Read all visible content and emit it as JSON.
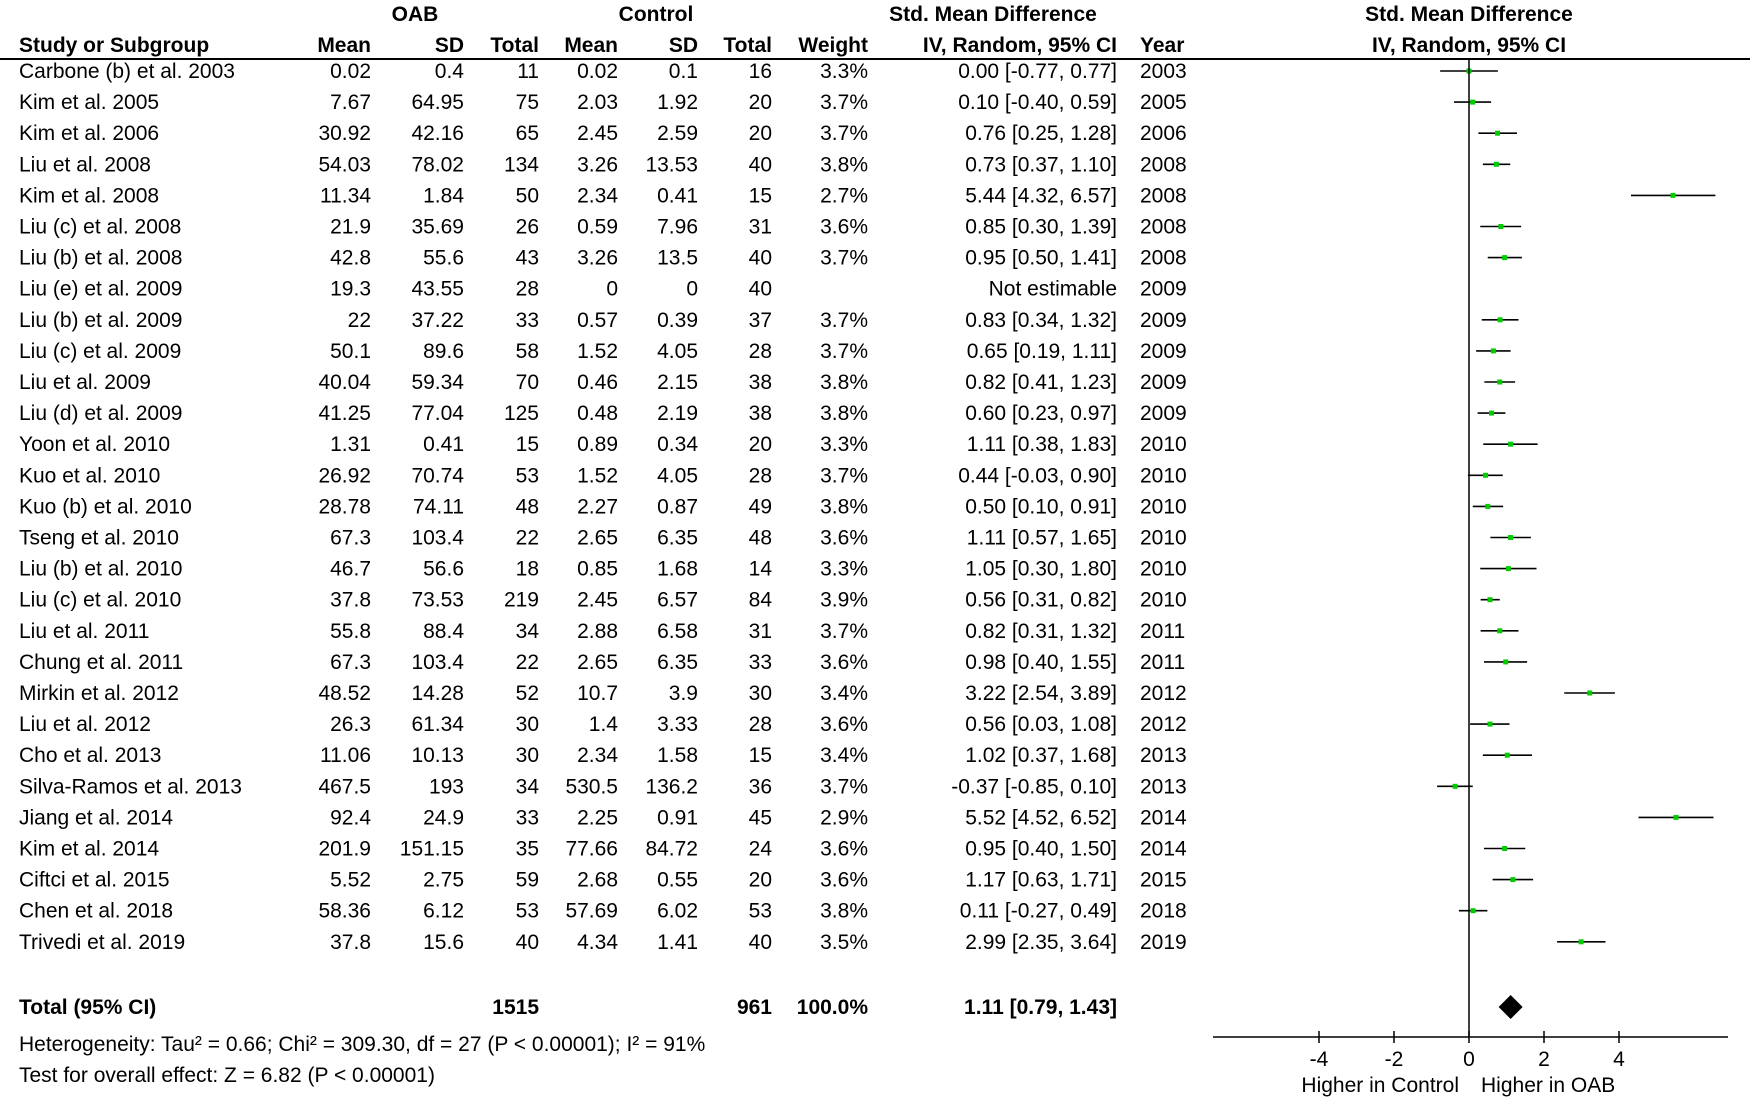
{
  "headers": {
    "oab_group": "OAB",
    "control_group": "Control",
    "smd_group": "Std. Mean Difference",
    "smd_method": "IV, Random, 95% CI",
    "plot_title": "Std. Mean Difference",
    "plot_method": "IV, Random, 95% CI",
    "columns": [
      "Study or Subgroup",
      "Mean",
      "SD",
      "Total",
      "Mean",
      "SD",
      "Total",
      "Weight",
      "IV, Random, 95% CI",
      "Year"
    ]
  },
  "studies": [
    {
      "study": "Carbone (b) et al. 2003",
      "oab_mean": "0.02",
      "oab_sd": "0.4",
      "oab_total": "11",
      "ctrl_mean": "0.02",
      "ctrl_sd": "0.1",
      "ctrl_total": "16",
      "weight": "3.3%",
      "ci_text": "0.00 [-0.77, 0.77]",
      "year": "2003",
      "smd": 0.0,
      "lo": -0.77,
      "hi": 0.77
    },
    {
      "study": "Kim et al. 2005",
      "oab_mean": "7.67",
      "oab_sd": "64.95",
      "oab_total": "75",
      "ctrl_mean": "2.03",
      "ctrl_sd": "1.92",
      "ctrl_total": "20",
      "weight": "3.7%",
      "ci_text": "0.10 [-0.40, 0.59]",
      "year": "2005",
      "smd": 0.1,
      "lo": -0.4,
      "hi": 0.59
    },
    {
      "study": "Kim et al. 2006",
      "oab_mean": "30.92",
      "oab_sd": "42.16",
      "oab_total": "65",
      "ctrl_mean": "2.45",
      "ctrl_sd": "2.59",
      "ctrl_total": "20",
      "weight": "3.7%",
      "ci_text": "0.76 [0.25, 1.28]",
      "year": "2006",
      "smd": 0.76,
      "lo": 0.25,
      "hi": 1.28
    },
    {
      "study": "Liu et al. 2008",
      "oab_mean": "54.03",
      "oab_sd": "78.02",
      "oab_total": "134",
      "ctrl_mean": "3.26",
      "ctrl_sd": "13.53",
      "ctrl_total": "40",
      "weight": "3.8%",
      "ci_text": "0.73 [0.37, 1.10]",
      "year": "2008",
      "smd": 0.73,
      "lo": 0.37,
      "hi": 1.1
    },
    {
      "study": "Kim et al. 2008",
      "oab_mean": "11.34",
      "oab_sd": "1.84",
      "oab_total": "50",
      "ctrl_mean": "2.34",
      "ctrl_sd": "0.41",
      "ctrl_total": "15",
      "weight": "2.7%",
      "ci_text": "5.44 [4.32, 6.57]",
      "year": "2008",
      "smd": 5.44,
      "lo": 4.32,
      "hi": 6.57
    },
    {
      "study": "Liu (c) et al. 2008",
      "oab_mean": "21.9",
      "oab_sd": "35.69",
      "oab_total": "26",
      "ctrl_mean": "0.59",
      "ctrl_sd": "7.96",
      "ctrl_total": "31",
      "weight": "3.6%",
      "ci_text": "0.85 [0.30, 1.39]",
      "year": "2008",
      "smd": 0.85,
      "lo": 0.3,
      "hi": 1.39
    },
    {
      "study": "Liu (b) et al. 2008",
      "oab_mean": "42.8",
      "oab_sd": "55.6",
      "oab_total": "43",
      "ctrl_mean": "3.26",
      "ctrl_sd": "13.5",
      "ctrl_total": "40",
      "weight": "3.7%",
      "ci_text": "0.95 [0.50, 1.41]",
      "year": "2008",
      "smd": 0.95,
      "lo": 0.5,
      "hi": 1.41
    },
    {
      "study": "Liu (e) et al. 2009",
      "oab_mean": "19.3",
      "oab_sd": "43.55",
      "oab_total": "28",
      "ctrl_mean": "0",
      "ctrl_sd": "0",
      "ctrl_total": "40",
      "weight": "",
      "ci_text": "Not estimable",
      "year": "2009",
      "smd": null,
      "lo": null,
      "hi": null
    },
    {
      "study": "Liu (b) et al. 2009",
      "oab_mean": "22",
      "oab_sd": "37.22",
      "oab_total": "33",
      "ctrl_mean": "0.57",
      "ctrl_sd": "0.39",
      "ctrl_total": "37",
      "weight": "3.7%",
      "ci_text": "0.83 [0.34, 1.32]",
      "year": "2009",
      "smd": 0.83,
      "lo": 0.34,
      "hi": 1.32
    },
    {
      "study": "Liu (c) et al. 2009",
      "oab_mean": "50.1",
      "oab_sd": "89.6",
      "oab_total": "58",
      "ctrl_mean": "1.52",
      "ctrl_sd": "4.05",
      "ctrl_total": "28",
      "weight": "3.7%",
      "ci_text": "0.65 [0.19, 1.11]",
      "year": "2009",
      "smd": 0.65,
      "lo": 0.19,
      "hi": 1.11
    },
    {
      "study": "Liu et al. 2009",
      "oab_mean": "40.04",
      "oab_sd": "59.34",
      "oab_total": "70",
      "ctrl_mean": "0.46",
      "ctrl_sd": "2.15",
      "ctrl_total": "38",
      "weight": "3.8%",
      "ci_text": "0.82 [0.41, 1.23]",
      "year": "2009",
      "smd": 0.82,
      "lo": 0.41,
      "hi": 1.23
    },
    {
      "study": "Liu (d) et al. 2009",
      "oab_mean": "41.25",
      "oab_sd": "77.04",
      "oab_total": "125",
      "ctrl_mean": "0.48",
      "ctrl_sd": "2.19",
      "ctrl_total": "38",
      "weight": "3.8%",
      "ci_text": "0.60 [0.23, 0.97]",
      "year": "2009",
      "smd": 0.6,
      "lo": 0.23,
      "hi": 0.97
    },
    {
      "study": "Yoon et al. 2010",
      "oab_mean": "1.31",
      "oab_sd": "0.41",
      "oab_total": "15",
      "ctrl_mean": "0.89",
      "ctrl_sd": "0.34",
      "ctrl_total": "20",
      "weight": "3.3%",
      "ci_text": "1.11 [0.38, 1.83]",
      "year": "2010",
      "smd": 1.11,
      "lo": 0.38,
      "hi": 1.83
    },
    {
      "study": "Kuo et al. 2010",
      "oab_mean": "26.92",
      "oab_sd": "70.74",
      "oab_total": "53",
      "ctrl_mean": "1.52",
      "ctrl_sd": "4.05",
      "ctrl_total": "28",
      "weight": "3.7%",
      "ci_text": "0.44 [-0.03, 0.90]",
      "year": "2010",
      "smd": 0.44,
      "lo": -0.03,
      "hi": 0.9
    },
    {
      "study": "Kuo (b) et al. 2010",
      "oab_mean": "28.78",
      "oab_sd": "74.11",
      "oab_total": "48",
      "ctrl_mean": "2.27",
      "ctrl_sd": "0.87",
      "ctrl_total": "49",
      "weight": "3.8%",
      "ci_text": "0.50 [0.10, 0.91]",
      "year": "2010",
      "smd": 0.5,
      "lo": 0.1,
      "hi": 0.91
    },
    {
      "study": "Tseng et al. 2010",
      "oab_mean": "67.3",
      "oab_sd": "103.4",
      "oab_total": "22",
      "ctrl_mean": "2.65",
      "ctrl_sd": "6.35",
      "ctrl_total": "48",
      "weight": "3.6%",
      "ci_text": "1.11 [0.57, 1.65]",
      "year": "2010",
      "smd": 1.11,
      "lo": 0.57,
      "hi": 1.65
    },
    {
      "study": "Liu (b) et al. 2010",
      "oab_mean": "46.7",
      "oab_sd": "56.6",
      "oab_total": "18",
      "ctrl_mean": "0.85",
      "ctrl_sd": "1.68",
      "ctrl_total": "14",
      "weight": "3.3%",
      "ci_text": "1.05 [0.30, 1.80]",
      "year": "2010",
      "smd": 1.05,
      "lo": 0.3,
      "hi": 1.8
    },
    {
      "study": "Liu (c) et al. 2010",
      "oab_mean": "37.8",
      "oab_sd": "73.53",
      "oab_total": "219",
      "ctrl_mean": "2.45",
      "ctrl_sd": "6.57",
      "ctrl_total": "84",
      "weight": "3.9%",
      "ci_text": "0.56 [0.31, 0.82]",
      "year": "2010",
      "smd": 0.56,
      "lo": 0.31,
      "hi": 0.82
    },
    {
      "study": "Liu et al. 2011",
      "oab_mean": "55.8",
      "oab_sd": "88.4",
      "oab_total": "34",
      "ctrl_mean": "2.88",
      "ctrl_sd": "6.58",
      "ctrl_total": "31",
      "weight": "3.7%",
      "ci_text": "0.82 [0.31, 1.32]",
      "year": "2011",
      "smd": 0.82,
      "lo": 0.31,
      "hi": 1.32
    },
    {
      "study": "Chung et al. 2011",
      "oab_mean": "67.3",
      "oab_sd": "103.4",
      "oab_total": "22",
      "ctrl_mean": "2.65",
      "ctrl_sd": "6.35",
      "ctrl_total": "33",
      "weight": "3.6%",
      "ci_text": "0.98 [0.40, 1.55]",
      "year": "2011",
      "smd": 0.98,
      "lo": 0.4,
      "hi": 1.55
    },
    {
      "study": "Mirkin et al. 2012",
      "oab_mean": "48.52",
      "oab_sd": "14.28",
      "oab_total": "52",
      "ctrl_mean": "10.7",
      "ctrl_sd": "3.9",
      "ctrl_total": "30",
      "weight": "3.4%",
      "ci_text": "3.22 [2.54, 3.89]",
      "year": "2012",
      "smd": 3.22,
      "lo": 2.54,
      "hi": 3.89
    },
    {
      "study": "Liu et al. 2012",
      "oab_mean": "26.3",
      "oab_sd": "61.34",
      "oab_total": "30",
      "ctrl_mean": "1.4",
      "ctrl_sd": "3.33",
      "ctrl_total": "28",
      "weight": "3.6%",
      "ci_text": "0.56 [0.03, 1.08]",
      "year": "2012",
      "smd": 0.56,
      "lo": 0.03,
      "hi": 1.08
    },
    {
      "study": "Cho et al. 2013",
      "oab_mean": "11.06",
      "oab_sd": "10.13",
      "oab_total": "30",
      "ctrl_mean": "2.34",
      "ctrl_sd": "1.58",
      "ctrl_total": "15",
      "weight": "3.4%",
      "ci_text": "1.02 [0.37, 1.68]",
      "year": "2013",
      "smd": 1.02,
      "lo": 0.37,
      "hi": 1.68
    },
    {
      "study": "Silva-Ramos et al. 2013",
      "oab_mean": "467.5",
      "oab_sd": "193",
      "oab_total": "34",
      "ctrl_mean": "530.5",
      "ctrl_sd": "136.2",
      "ctrl_total": "36",
      "weight": "3.7%",
      "ci_text": "-0.37 [-0.85, 0.10]",
      "year": "2013",
      "smd": -0.37,
      "lo": -0.85,
      "hi": 0.1
    },
    {
      "study": "Jiang et al. 2014",
      "oab_mean": "92.4",
      "oab_sd": "24.9",
      "oab_total": "33",
      "ctrl_mean": "2.25",
      "ctrl_sd": "0.91",
      "ctrl_total": "45",
      "weight": "2.9%",
      "ci_text": "5.52 [4.52, 6.52]",
      "year": "2014",
      "smd": 5.52,
      "lo": 4.52,
      "hi": 6.52
    },
    {
      "study": "Kim et al. 2014",
      "oab_mean": "201.9",
      "oab_sd": "151.15",
      "oab_total": "35",
      "ctrl_mean": "77.66",
      "ctrl_sd": "84.72",
      "ctrl_total": "24",
      "weight": "3.6%",
      "ci_text": "0.95 [0.40, 1.50]",
      "year": "2014",
      "smd": 0.95,
      "lo": 0.4,
      "hi": 1.5
    },
    {
      "study": "Ciftci et al. 2015",
      "oab_mean": "5.52",
      "oab_sd": "2.75",
      "oab_total": "59",
      "ctrl_mean": "2.68",
      "ctrl_sd": "0.55",
      "ctrl_total": "20",
      "weight": "3.6%",
      "ci_text": "1.17 [0.63, 1.71]",
      "year": "2015",
      "smd": 1.17,
      "lo": 0.63,
      "hi": 1.71
    },
    {
      "study": "Chen et al. 2018",
      "oab_mean": "58.36",
      "oab_sd": "6.12",
      "oab_total": "53",
      "ctrl_mean": "57.69",
      "ctrl_sd": "6.02",
      "ctrl_total": "53",
      "weight": "3.8%",
      "ci_text": "0.11 [-0.27, 0.49]",
      "year": "2018",
      "smd": 0.11,
      "lo": -0.27,
      "hi": 0.49
    },
    {
      "study": "Trivedi et al. 2019",
      "oab_mean": "37.8",
      "oab_sd": "15.6",
      "oab_total": "40",
      "ctrl_mean": "4.34",
      "ctrl_sd": "1.41",
      "ctrl_total": "40",
      "weight": "3.5%",
      "ci_text": "2.99 [2.35, 3.64]",
      "year": "2019",
      "smd": 2.99,
      "lo": 2.35,
      "hi": 3.64
    }
  ],
  "total": {
    "label": "Total (95% CI)",
    "oab_total": "1515",
    "ctrl_total": "961",
    "weight": "100.0%",
    "ci_text": "1.11 [0.79, 1.43]",
    "smd": 1.11,
    "lo": 0.79,
    "hi": 1.43
  },
  "footer": {
    "heterogeneity": "Heterogeneity: Tau² = 0.66; Chi² = 309.30, df = 27 (P < 0.00001); I² = 91%",
    "overall_effect": "Test for overall effect: Z = 6.82 (P < 0.00001)"
  },
  "axis": {
    "ticks": [
      -4,
      -2,
      0,
      2,
      4
    ],
    "tick_labels": [
      "-4",
      "-2",
      "0",
      "2",
      "4"
    ],
    "label_left": "Higher in Control",
    "label_right": "Higher in OAB"
  },
  "colors": {
    "point": "#00cc00",
    "line": "#000000",
    "diamond": "#000000"
  },
  "chart_data": {
    "type": "forest",
    "title": "Std. Mean Difference",
    "subtitle": "IV, Random, 95% CI",
    "categories": [
      "Carbone (b) et al. 2003",
      "Kim et al. 2005",
      "Kim et al. 2006",
      "Liu et al. 2008",
      "Kim et al. 2008",
      "Liu (c) et al. 2008",
      "Liu (b) et al. 2008",
      "Liu (e) et al. 2009",
      "Liu (b) et al. 2009",
      "Liu (c) et al. 2009",
      "Liu et al. 2009",
      "Liu (d) et al. 2009",
      "Yoon et al. 2010",
      "Kuo et al. 2010",
      "Kuo (b) et al. 2010",
      "Tseng et al. 2010",
      "Liu (b) et al. 2010",
      "Liu (c) et al. 2010",
      "Liu et al. 2011",
      "Chung et al. 2011",
      "Mirkin et al. 2012",
      "Liu et al. 2012",
      "Cho et al. 2013",
      "Silva-Ramos et al. 2013",
      "Jiang et al. 2014",
      "Kim et al. 2014",
      "Ciftci et al. 2015",
      "Chen et al. 2018",
      "Trivedi et al. 2019"
    ],
    "series": [
      {
        "values": [
          0.0,
          0.1,
          0.76,
          0.73,
          5.44,
          0.85,
          0.95,
          null,
          0.83,
          0.65,
          0.82,
          0.6,
          1.11,
          0.44,
          0.5,
          1.11,
          1.05,
          0.56,
          0.82,
          0.98,
          3.22,
          0.56,
          1.02,
          -0.37,
          5.52,
          0.95,
          1.17,
          0.11,
          2.99
        ]
      }
    ],
    "pooled": {
      "estimate": 1.11,
      "lower": 0.79,
      "upper": 1.43
    },
    "xlim": [
      -4,
      7
    ],
    "xticks": [
      -4,
      -2,
      0,
      2,
      4
    ],
    "xlabel_left": "Higher in Control",
    "xlabel_right": "Higher in OAB"
  }
}
